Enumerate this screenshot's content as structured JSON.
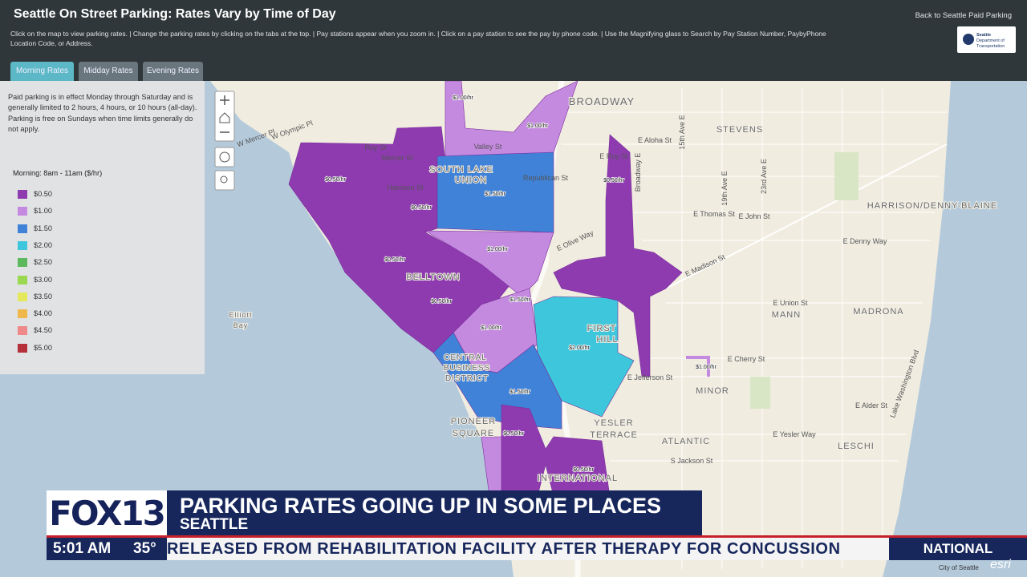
{
  "header": {
    "title": "Seattle On Street Parking: Rates Vary by Time of Day",
    "instructions_line1": "Click on the map to view parking rates. | Change the parking rates by clicking on the tabs at the top. | Pay stations appear when you zoom in. | Click on a pay station to see the pay by phone code. | Use the Magnifying glass to Search by Pay Station Number, PaybyPhone",
    "instructions_line2": "Location Code, or Address.",
    "back_link": "Back to Seattle Paid Parking",
    "logo_line1": "Seattle",
    "logo_line2": "Department of",
    "logo_line3": "Transportation"
  },
  "tabs": [
    "Morning Rates",
    "Midday Rates",
    "Evening Rates"
  ],
  "sidebar": {
    "description": "Paid parking is in effect Monday through Saturday and is generally limited to 2 hours, 4 hours, or 10 hours (all-day). Parking is free on Sundays when time limits generally do not apply.",
    "legend_title": "Morning: 8am - 11am ($/hr)",
    "legend": [
      {
        "label": "$0.50",
        "color": "#8e3bb0"
      },
      {
        "label": "$1.00",
        "color": "#c48ae0"
      },
      {
        "label": "$1.50",
        "color": "#3f82d8"
      },
      {
        "label": "$2.00",
        "color": "#3ec7dc"
      },
      {
        "label": "$2.50",
        "color": "#5cb85c"
      },
      {
        "label": "$3.00",
        "color": "#9ad94f"
      },
      {
        "label": "$3.50",
        "color": "#e4e85c"
      },
      {
        "label": "$4.00",
        "color": "#f0b84a"
      },
      {
        "label": "$4.50",
        "color": "#f08a8a"
      },
      {
        "label": "$5.00",
        "color": "#b5303a"
      }
    ]
  },
  "map": {
    "neighborhoods": [
      "BROADWAY",
      "STEVENS",
      "SOUTH LAKE",
      "UNION",
      "BELLTOWN",
      "FIRST",
      "HILL",
      "CENTRAL",
      "BUSINESS",
      "DISTRICT",
      "MANN",
      "MADRONA",
      "HARRISON/DENNY-BLAINE",
      "MINOR",
      "YESLER",
      "TERRACE",
      "ATLANTIC",
      "LESCHI",
      "PIONEER",
      "SQUARE",
      "INTERNATIONAL",
      "Elliott",
      "Bay"
    ],
    "streets": [
      "E Roy St",
      "Republican St",
      "Valley St",
      "Mercer St",
      "Roy St",
      "Harrison St",
      "W Olympic Pl",
      "W Mercer Pl",
      "E Aloha St",
      "E Thomas St",
      "E John St",
      "E Denny Way",
      "E Olive Way",
      "E Madison St",
      "E Union St",
      "E Cherry St",
      "E Jefferson St",
      "E Yesler Way",
      "S Jackson St",
      "E Alder St",
      "15th Ave E",
      "19th Ave E",
      "23rd Ave E",
      "Broadway E",
      "Lake Washington Blvd"
    ],
    "rates": [
      "$1.00/hr",
      "$1.00/hr",
      "$0.50/hr",
      "$1.50/hr",
      "$1.00/hr",
      "$0.50/hr",
      "$0.50/hr",
      "$2.00/hr",
      "$1.00/hr",
      "$1.50/hr",
      "$0.50/hr",
      "$0.50/hr",
      "$1.00/hr",
      "$0.50/hr",
      "$0.50/hr",
      "$1.50/hr"
    ],
    "credit": "City of Seattle",
    "esri": "esri"
  },
  "broadcast": {
    "logo": "FOX13",
    "headline": "PARKING RATES GOING UP IN SOME PLACES",
    "location": "SEATTLE",
    "time": "5:01 AM",
    "temperature": "35°",
    "ticker": "RELEASED FROM REHABILITATION FACILITY AFTER THERAPY FOR CONCUSSION",
    "section": "NATIONAL"
  }
}
